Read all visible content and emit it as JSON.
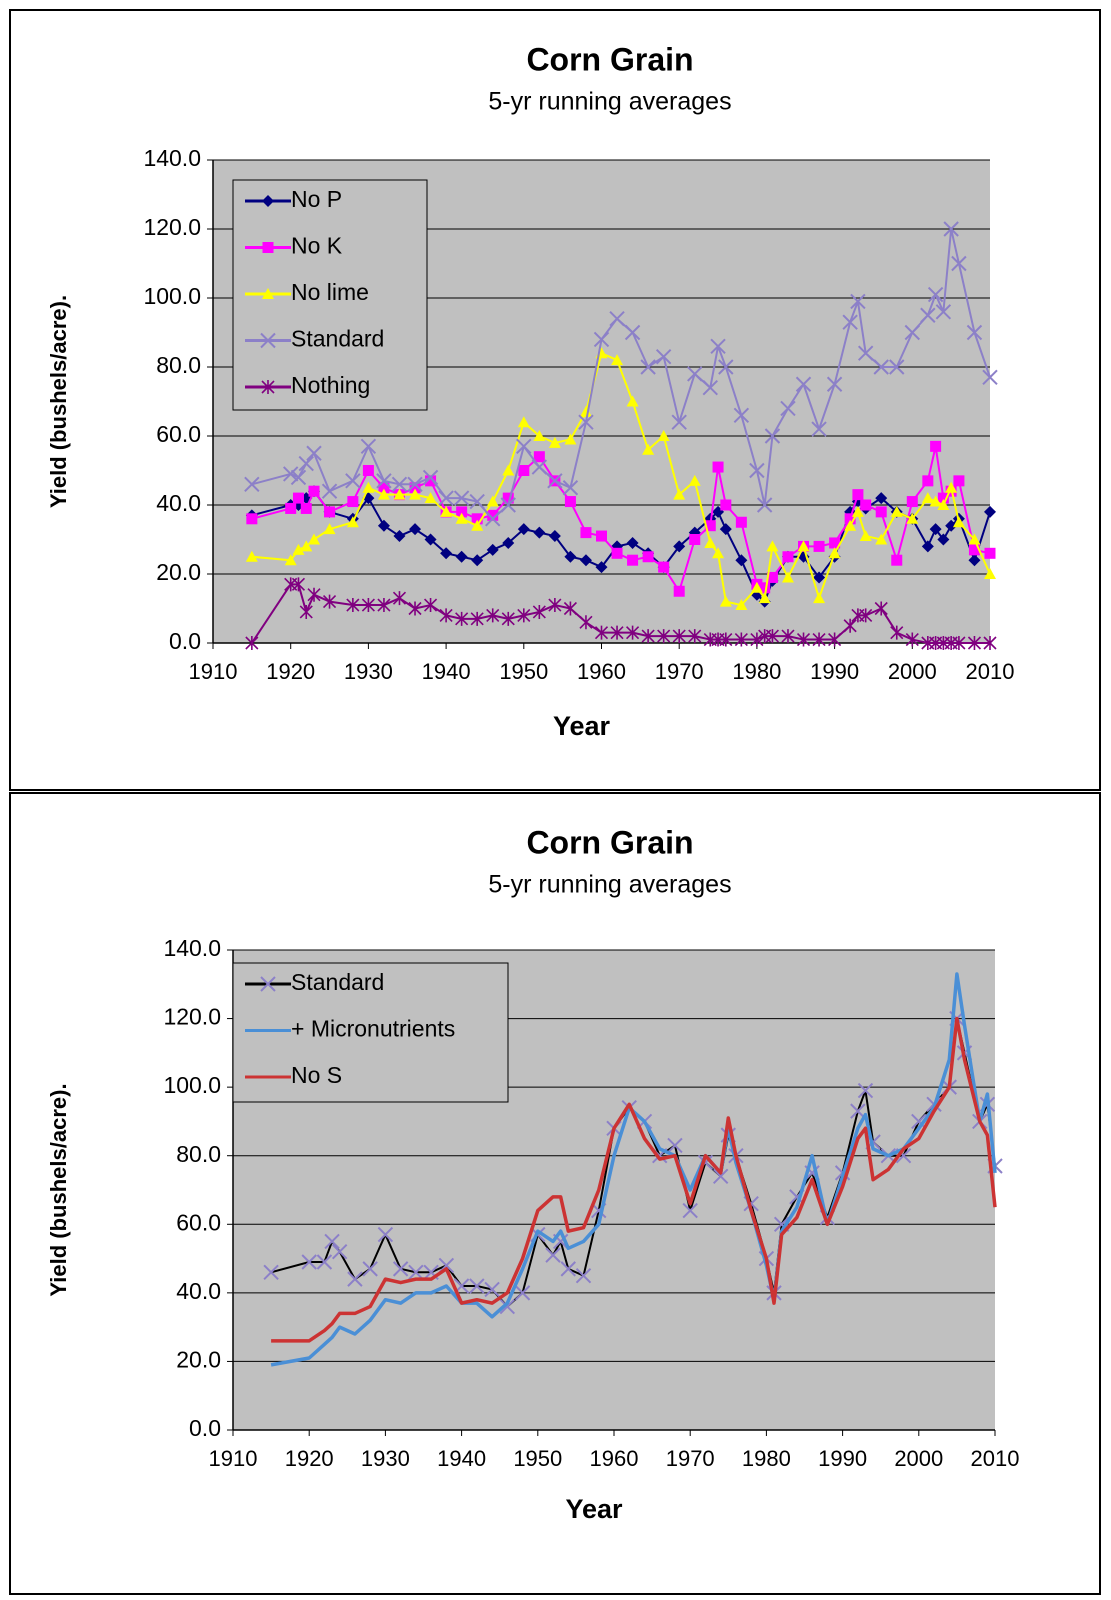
{
  "chart_data": [
    {
      "type": "line",
      "title": "Corn Grain",
      "subtitle": "5-yr running averages",
      "xlabel": "Year",
      "ylabel": "Yield (bushels/acre).",
      "legend": "upper left",
      "grid": true,
      "background": "#c0c0c0",
      "xlim": [
        1910,
        2010
      ],
      "xticks": [
        1910,
        1920,
        1930,
        1940,
        1950,
        1960,
        1970,
        1980,
        1990,
        2000,
        2010
      ],
      "ylim": [
        0,
        140
      ],
      "yticks": [
        {
          "value": 0,
          "label": "0.0"
        },
        {
          "value": 20,
          "label": "20.0"
        },
        {
          "value": 40,
          "label": "40.0"
        },
        {
          "value": 60,
          "label": "60.0"
        },
        {
          "value": 80,
          "label": "80.0"
        },
        {
          "value": 100,
          "label": "100.0"
        },
        {
          "value": 120,
          "label": "120.0"
        },
        {
          "value": 140,
          "label": "140.0"
        }
      ],
      "x": [
        1915,
        1920,
        1921,
        1922,
        1923,
        1925,
        1928,
        1930,
        1932,
        1934,
        1936,
        1938,
        1940,
        1942,
        1944,
        1946,
        1948,
        1950,
        1952,
        1954,
        1956,
        1958,
        1960,
        1962,
        1964,
        1966,
        1968,
        1970,
        1972,
        1974,
        1975,
        1976,
        1978,
        1980,
        1981,
        1982,
        1984,
        1986,
        1988,
        1990,
        1992,
        1993,
        1994,
        1996,
        1998,
        2000,
        2002,
        2003,
        2004,
        2005,
        2006,
        2008,
        2010
      ],
      "series": [
        {
          "name": "No P",
          "color": "#000080",
          "marker": "diamond",
          "values": [
            37,
            40,
            40,
            42,
            44,
            38,
            36,
            42,
            34,
            31,
            33,
            30,
            26,
            25,
            24,
            27,
            29,
            33,
            32,
            31,
            25,
            24,
            22,
            28,
            29,
            26,
            22,
            28,
            32,
            36,
            38,
            33,
            24,
            14,
            12,
            18,
            25,
            25,
            19,
            25,
            38,
            41,
            39,
            42,
            38,
            36,
            28,
            33,
            30,
            34,
            36,
            24,
            38
          ]
        },
        {
          "name": "No K",
          "color": "#ff00ff",
          "marker": "square",
          "values": [
            36,
            39,
            42,
            39,
            44,
            38,
            41,
            50,
            45,
            43,
            45,
            47,
            38,
            38,
            36,
            37,
            42,
            50,
            54,
            47,
            41,
            32,
            31,
            26,
            24,
            25,
            22,
            15,
            30,
            34,
            51,
            40,
            35,
            17,
            16,
            19,
            25,
            28,
            28,
            29,
            36,
            43,
            40,
            38,
            24,
            41,
            47,
            57,
            42,
            44,
            47,
            27,
            26
          ]
        },
        {
          "name": "No lime",
          "color": "#ffff00",
          "marker": "triangle",
          "values": [
            25,
            24,
            27,
            28,
            30,
            33,
            35,
            45,
            43,
            43,
            43,
            42,
            38,
            36,
            34,
            41,
            50,
            64,
            60,
            58,
            59,
            67,
            84,
            82,
            70,
            56,
            60,
            43,
            47,
            29,
            26,
            12,
            11,
            16,
            13,
            28,
            19,
            28,
            13,
            26,
            34,
            38,
            31,
            30,
            38,
            36,
            42,
            41,
            40,
            45,
            35,
            30,
            20
          ]
        },
        {
          "name": "Standard",
          "color": "#8c80c8",
          "marker": "x",
          "values": [
            46,
            49,
            48,
            52,
            55,
            44,
            47,
            57,
            47,
            46,
            46,
            48,
            42,
            42,
            41,
            36,
            40,
            57,
            51,
            47,
            45,
            64,
            88,
            94,
            90,
            80,
            83,
            64,
            78,
            74,
            86,
            80,
            66,
            50,
            40,
            60,
            68,
            75,
            62,
            75,
            93,
            99,
            84,
            80,
            80,
            90,
            95,
            101,
            96,
            120,
            110,
            90,
            77
          ]
        },
        {
          "name": "Nothing",
          "color": "#800080",
          "marker": "star",
          "values": [
            0,
            17,
            17,
            9,
            14,
            12,
            11,
            11,
            11,
            13,
            10,
            11,
            8,
            7,
            7,
            8,
            7,
            8,
            9,
            11,
            10,
            6,
            3,
            3,
            3,
            2,
            2,
            2,
            2,
            1,
            1,
            1,
            1,
            1,
            2,
            2,
            2,
            1,
            1,
            1,
            5,
            8,
            8,
            10,
            3,
            1,
            0,
            0,
            0,
            0,
            0,
            0,
            0
          ]
        }
      ]
    },
    {
      "type": "line",
      "title": "Corn Grain",
      "subtitle": "5-yr running averages",
      "xlabel": "Year",
      "ylabel": "Yield (bushels/acre).",
      "legend": "upper left",
      "grid": true,
      "background": "#c0c0c0",
      "xlim": [
        1910,
        2010
      ],
      "xticks": [
        1910,
        1920,
        1930,
        1940,
        1950,
        1960,
        1970,
        1980,
        1990,
        2000,
        2010
      ],
      "ylim": [
        0,
        140
      ],
      "yticks": [
        {
          "value": 0,
          "label": "0.0"
        },
        {
          "value": 20,
          "label": "20.0"
        },
        {
          "value": 40,
          "label": "40.0"
        },
        {
          "value": 60,
          "label": "60.0"
        },
        {
          "value": 80,
          "label": "80.0"
        },
        {
          "value": 100,
          "label": "100.0"
        },
        {
          "value": 120,
          "label": "120.0"
        },
        {
          "value": 140,
          "label": "140.0"
        }
      ],
      "x": [
        1915,
        1920,
        1922,
        1923,
        1924,
        1926,
        1928,
        1930,
        1932,
        1934,
        1936,
        1938,
        1940,
        1942,
        1944,
        1946,
        1948,
        1950,
        1952,
        1953,
        1954,
        1956,
        1958,
        1960,
        1962,
        1964,
        1966,
        1968,
        1970,
        1972,
        1974,
        1975,
        1976,
        1978,
        1980,
        1981,
        1982,
        1984,
        1986,
        1988,
        1990,
        1992,
        1993,
        1994,
        1996,
        1998,
        2000,
        2002,
        2004,
        2005,
        2006,
        2008,
        2009,
        2010
      ],
      "series": [
        {
          "name": "Standard",
          "color": "#000000",
          "marker": "x",
          "marker_color": "#8c80c8",
          "values": [
            46,
            49,
            49,
            55,
            52,
            44,
            47,
            57,
            47,
            46,
            46,
            48,
            42,
            42,
            41,
            36,
            40,
            57,
            51,
            55,
            47,
            45,
            64,
            88,
            94,
            90,
            80,
            83,
            64,
            78,
            74,
            86,
            80,
            66,
            50,
            40,
            60,
            68,
            75,
            62,
            75,
            93,
            99,
            84,
            80,
            80,
            90,
            95,
            100,
            120,
            110,
            90,
            95,
            77
          ]
        },
        {
          "name": "+ Micronutrients",
          "color": "#4a8fd6",
          "values": [
            19,
            21,
            25,
            27,
            30,
            28,
            32,
            38,
            37,
            40,
            40,
            42,
            37,
            37,
            33,
            37,
            47,
            58,
            55,
            58,
            53,
            55,
            60,
            80,
            94,
            90,
            82,
            80,
            70,
            80,
            75,
            88,
            78,
            64,
            48,
            38,
            58,
            65,
            80,
            60,
            74,
            88,
            92,
            82,
            80,
            82,
            88,
            94,
            108,
            133,
            118,
            90,
            98,
            75
          ]
        },
        {
          "name": "No S",
          "color": "#cc3333",
          "values": [
            26,
            26,
            29,
            31,
            34,
            34,
            36,
            44,
            43,
            44,
            44,
            47,
            37,
            38,
            37,
            40,
            50,
            64,
            68,
            68,
            58,
            59,
            70,
            88,
            95,
            85,
            79,
            80,
            66,
            80,
            75,
            91,
            80,
            64,
            50,
            37,
            57,
            62,
            73,
            60,
            71,
            85,
            88,
            73,
            76,
            82,
            85,
            93,
            100,
            120,
            108,
            90,
            86,
            65
          ]
        }
      ]
    }
  ]
}
